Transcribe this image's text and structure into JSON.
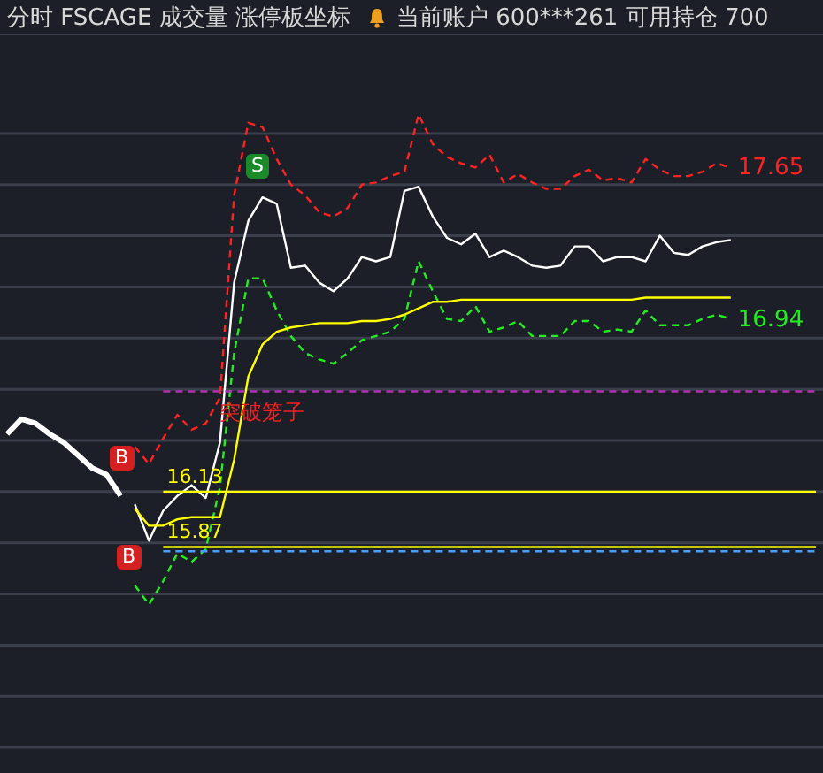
{
  "chart_data": {
    "type": "line",
    "title": "分时 FSCAGE 成交量 涨停板坐标",
    "subtitle": "当前账户 600***261 可用持仓 700",
    "categories": [
      null,
      null,
      null,
      null,
      null,
      null,
      null,
      null,
      null,
      null,
      null,
      null,
      null,
      null,
      null,
      null,
      null,
      null,
      null,
      null,
      null,
      null,
      null,
      null,
      null,
      null,
      null,
      null,
      null,
      null,
      null,
      null,
      null,
      null,
      null,
      null,
      null,
      null,
      null,
      null,
      null,
      null,
      null,
      null,
      null,
      null,
      null,
      null,
      null,
      null,
      null,
      null,
      null,
      null,
      null,
      null,
      null,
      null
    ],
    "ylim": [
      14.81,
      18.27
    ],
    "yticks": [
      {
        "value": 17.81,
        "label": null
      },
      {
        "value": 17.57,
        "label": null
      },
      {
        "value": 17.33,
        "label": null
      },
      {
        "value": 17.09,
        "label": null
      },
      {
        "value": 16.85,
        "label": null
      },
      {
        "value": 16.61,
        "label": null
      },
      {
        "value": 16.37,
        "label": null
      },
      {
        "value": 16.13,
        "label": null
      },
      {
        "value": 15.89,
        "label": null
      },
      {
        "value": 15.65,
        "label": null
      },
      {
        "value": 15.41,
        "label": null
      },
      {
        "value": 15.17,
        "label": null
      },
      {
        "value": 14.93,
        "label": null
      }
    ],
    "grid": "y",
    "marker": "none",
    "series": [
      {
        "color": "#ffffff",
        "line_style": "solid",
        "values": [
          16.4,
          16.47,
          16.45,
          16.4,
          16.36,
          16.3,
          16.24,
          16.21,
          16.11,
          null,
          null,
          null,
          null,
          null,
          null,
          null,
          null,
          null,
          null,
          null,
          null,
          null,
          null,
          null,
          null,
          null,
          null,
          null,
          null,
          null,
          null,
          null,
          null,
          null,
          null,
          null,
          null,
          null,
          null,
          null,
          null,
          null,
          null,
          null,
          null,
          null,
          null,
          null,
          null,
          null,
          null,
          null,
          null,
          null,
          null,
          null,
          null,
          null
        ]
      },
      {
        "color": "#ff2222",
        "line_style": "dashed",
        "values": [
          null,
          null,
          null,
          null,
          null,
          null,
          null,
          null,
          null,
          16.34,
          16.26,
          16.38,
          16.49,
          16.42,
          16.45,
          16.57,
          17.52,
          17.86,
          17.84,
          17.69,
          17.57,
          17.52,
          17.44,
          17.42,
          17.46,
          17.57,
          17.58,
          17.61,
          17.63,
          17.9,
          17.76,
          17.7,
          17.67,
          17.65,
          17.71,
          17.58,
          17.62,
          17.58,
          17.55,
          17.55,
          17.61,
          17.64,
          17.59,
          17.6,
          17.58,
          17.69,
          17.64,
          17.61,
          17.61,
          17.63,
          17.67,
          17.65,
          null,
          null,
          null,
          null,
          null,
          null
        ],
        "value_labels": [
          null,
          null,
          null,
          null,
          null,
          null,
          null,
          null,
          null,
          null,
          null,
          null,
          null,
          null,
          null,
          null,
          null,
          null,
          null,
          null,
          null,
          null,
          null,
          null,
          null,
          null,
          null,
          null,
          null,
          null,
          null,
          null,
          null,
          null,
          null,
          null,
          null,
          null,
          null,
          null,
          null,
          null,
          null,
          null,
          null,
          null,
          null,
          null,
          null,
          null,
          null,
          "17.65",
          null,
          null,
          null,
          null,
          null,
          null
        ]
      },
      {
        "color": "#ffffff",
        "line_style": "solid",
        "values": [
          null,
          null,
          null,
          null,
          null,
          null,
          null,
          null,
          null,
          16.07,
          15.9,
          16.04,
          16.11,
          16.16,
          16.1,
          16.36,
          17.11,
          17.4,
          17.51,
          17.48,
          17.18,
          17.19,
          17.11,
          17.07,
          17.13,
          17.23,
          17.21,
          17.23,
          17.54,
          17.56,
          17.42,
          17.32,
          17.29,
          17.34,
          17.23,
          17.26,
          17.23,
          17.19,
          17.18,
          17.19,
          17.28,
          17.28,
          17.21,
          17.23,
          17.23,
          17.21,
          17.33,
          17.25,
          17.24,
          17.28,
          17.3,
          17.31,
          null,
          null,
          null,
          null,
          null,
          null
        ]
      },
      {
        "color": "#22ee22",
        "line_style": "dashed",
        "values": [
          null,
          null,
          null,
          null,
          null,
          null,
          null,
          null,
          null,
          15.69,
          15.6,
          15.71,
          15.84,
          15.8,
          15.86,
          16.15,
          16.78,
          17.13,
          17.13,
          16.98,
          16.86,
          16.78,
          16.75,
          16.73,
          16.78,
          16.84,
          16.86,
          16.88,
          16.94,
          17.21,
          17.07,
          16.94,
          16.93,
          17.0,
          16.88,
          16.9,
          16.93,
          16.86,
          16.86,
          16.86,
          16.93,
          16.93,
          16.88,
          16.89,
          16.88,
          16.98,
          16.91,
          16.91,
          16.91,
          16.94,
          16.96,
          16.94,
          null,
          null,
          null,
          null,
          null,
          null
        ],
        "value_labels": [
          null,
          null,
          null,
          null,
          null,
          null,
          null,
          null,
          null,
          null,
          null,
          null,
          null,
          null,
          null,
          null,
          null,
          null,
          null,
          null,
          null,
          null,
          null,
          null,
          null,
          null,
          null,
          null,
          null,
          null,
          null,
          null,
          null,
          null,
          null,
          null,
          null,
          null,
          null,
          null,
          null,
          null,
          null,
          null,
          null,
          null,
          null,
          null,
          null,
          null,
          null,
          "16.94",
          null,
          null,
          null,
          null,
          null,
          null
        ]
      },
      {
        "color": "#ffff00",
        "line_style": "solid",
        "values": [
          null,
          null,
          null,
          null,
          null,
          null,
          null,
          null,
          null,
          16.05,
          15.97,
          15.97,
          16.0,
          16.01,
          16.01,
          16.01,
          16.28,
          16.67,
          16.82,
          16.88,
          16.9,
          16.91,
          16.92,
          16.92,
          16.92,
          16.93,
          16.93,
          16.94,
          16.96,
          16.99,
          17.02,
          17.02,
          17.03,
          17.03,
          17.03,
          17.03,
          17.03,
          17.03,
          17.03,
          17.03,
          17.03,
          17.03,
          17.03,
          17.03,
          17.03,
          17.04,
          17.04,
          17.04,
          17.04,
          17.04,
          17.04,
          17.04,
          null,
          null,
          null,
          null,
          null,
          null
        ]
      }
    ],
    "ref_lines": [
      {
        "axis": "y",
        "value": 16.13,
        "label": "16.13",
        "color": "#ffff00",
        "line_style": "solid"
      },
      {
        "axis": "y",
        "value": 15.87,
        "label": "15.87",
        "color": "#ffff00",
        "line_style": "solid"
      },
      {
        "axis": "y",
        "value": 15.85,
        "color": "#4a9eff",
        "line_style": "dashed"
      },
      {
        "axis": "y",
        "value": 16.6,
        "color": "#b030b0",
        "line_style": "dashed"
      }
    ],
    "annotations": [
      "B",
      "B",
      "S",
      "突破笼子"
    ]
  }
}
